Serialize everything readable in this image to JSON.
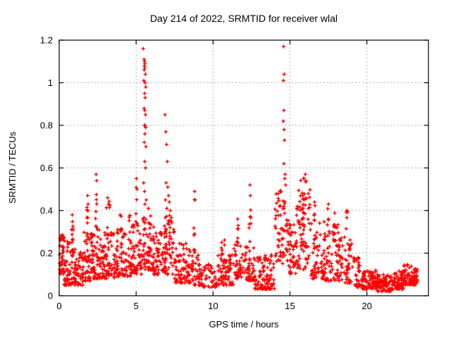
{
  "chart_data": {
    "type": "scatter",
    "title": "Day 214 of 2022, SRMTID for receiver wlal",
    "xlabel": "GPS time / hours",
    "ylabel": "SRMTID / TECUs",
    "xlim": [
      0,
      24
    ],
    "ylim": [
      0,
      1.2
    ],
    "xticks": [
      0,
      5,
      10,
      15,
      20
    ],
    "yticks": [
      0,
      0.2,
      0.4,
      0.6,
      0.8,
      1,
      1.2
    ],
    "xtick_labels": [
      "0",
      "5",
      "10",
      "15",
      "20"
    ],
    "ytick_labels": [
      "0",
      "0.2",
      "0.4",
      "0.6",
      "0.8",
      "1",
      "1.2"
    ],
    "grid": true,
    "legend": "none",
    "marker": "plus",
    "colors": {
      "marker": "#ff0000",
      "grid": "#b3b3b3",
      "axis": "#000000",
      "background": "#ffffff"
    },
    "series": [
      {
        "name": "SRMTID",
        "points_explicit": [
          [
            5.46,
            1.16
          ],
          [
            5.52,
            1.11
          ],
          [
            5.55,
            1.1
          ],
          [
            5.57,
            1.09
          ],
          [
            5.54,
            1.08
          ],
          [
            5.56,
            1.07
          ],
          [
            5.53,
            1.06
          ],
          [
            5.6,
            1.04
          ],
          [
            5.5,
            1.01
          ],
          [
            5.58,
            1.0
          ],
          [
            5.62,
            0.98
          ],
          [
            5.55,
            0.95
          ],
          [
            5.59,
            0.93
          ],
          [
            5.52,
            0.88
          ],
          [
            5.56,
            0.87
          ],
          [
            5.61,
            0.85
          ],
          [
            5.54,
            0.8
          ],
          [
            5.58,
            0.8
          ],
          [
            5.62,
            0.79
          ],
          [
            5.57,
            0.76
          ],
          [
            5.53,
            0.72
          ],
          [
            5.64,
            0.7
          ],
          [
            5.56,
            0.63
          ],
          [
            5.61,
            0.6
          ],
          [
            5.49,
            0.53
          ],
          [
            5.55,
            0.49
          ],
          [
            5.66,
            0.45
          ],
          [
            5.58,
            0.43
          ],
          [
            5.8,
            0.41
          ],
          [
            6.88,
            0.85
          ],
          [
            6.93,
            0.77
          ],
          [
            6.98,
            0.71
          ],
          [
            7.03,
            0.63
          ],
          [
            6.95,
            0.53
          ],
          [
            7.06,
            0.51
          ],
          [
            7.11,
            0.47
          ],
          [
            6.9,
            0.45
          ],
          [
            7.16,
            0.44
          ],
          [
            7.0,
            0.41
          ],
          [
            7.22,
            0.4
          ],
          [
            14.59,
            1.17
          ],
          [
            14.62,
            1.04
          ],
          [
            14.58,
            1.01
          ],
          [
            14.6,
            0.87
          ],
          [
            14.57,
            0.82
          ],
          [
            14.62,
            0.78
          ],
          [
            14.64,
            0.73
          ],
          [
            14.6,
            0.62
          ],
          [
            14.68,
            0.57
          ],
          [
            14.66,
            0.55
          ],
          [
            14.72,
            0.52
          ],
          [
            2.4,
            0.57
          ],
          [
            2.43,
            0.54
          ],
          [
            5.02,
            0.55
          ],
          [
            5.06,
            0.5
          ],
          [
            8.8,
            0.49
          ],
          [
            8.83,
            0.45
          ],
          [
            12.4,
            0.52
          ],
          [
            12.43,
            0.47
          ],
          [
            11.6,
            0.36
          ],
          [
            0.85,
            0.38
          ],
          [
            1.85,
            0.47
          ],
          [
            1.88,
            0.43
          ],
          [
            3.15,
            0.46
          ],
          [
            3.2,
            0.43
          ],
          [
            16.0,
            0.57
          ],
          [
            15.9,
            0.55
          ],
          [
            18.7,
            0.4
          ],
          [
            17.5,
            0.43
          ],
          [
            16.6,
            0.44
          ]
        ],
        "bands_x0_x1_n_ylo_yhi_pow": [
          [
            0.0,
            0.35,
            40,
            0.1,
            0.3,
            1.3
          ],
          [
            0.3,
            1.05,
            65,
            0.05,
            0.26,
            1.8
          ],
          [
            0.75,
            0.95,
            8,
            0.24,
            0.38,
            1.0
          ],
          [
            1.0,
            1.6,
            55,
            0.05,
            0.22,
            1.8
          ],
          [
            1.6,
            2.15,
            50,
            0.07,
            0.3,
            1.6
          ],
          [
            1.75,
            1.95,
            7,
            0.28,
            0.47,
            1.0
          ],
          [
            2.1,
            2.7,
            55,
            0.08,
            0.32,
            1.6
          ],
          [
            2.3,
            2.5,
            7,
            0.3,
            0.57,
            1.0
          ],
          [
            2.7,
            3.6,
            70,
            0.08,
            0.3,
            1.7
          ],
          [
            3.05,
            3.3,
            7,
            0.28,
            0.46,
            1.0
          ],
          [
            3.6,
            4.7,
            85,
            0.09,
            0.32,
            1.7
          ],
          [
            3.9,
            4.1,
            5,
            0.3,
            0.4,
            1.0
          ],
          [
            4.5,
            4.68,
            5,
            0.28,
            0.38,
            1.0
          ],
          [
            4.7,
            5.35,
            55,
            0.1,
            0.35,
            1.5
          ],
          [
            4.95,
            5.1,
            5,
            0.33,
            0.55,
            1.0
          ],
          [
            5.35,
            6.15,
            70,
            0.12,
            0.38,
            1.5
          ],
          [
            6.15,
            6.8,
            50,
            0.1,
            0.3,
            1.7
          ],
          [
            6.8,
            7.5,
            65,
            0.1,
            0.38,
            1.4
          ],
          [
            7.5,
            8.6,
            80,
            0.06,
            0.25,
            1.8
          ],
          [
            8.6,
            9.05,
            25,
            0.05,
            0.22,
            1.5
          ],
          [
            8.68,
            8.88,
            6,
            0.2,
            0.49,
            1.0
          ],
          [
            9.05,
            10.3,
            65,
            0.04,
            0.15,
            1.6
          ],
          [
            10.3,
            11.35,
            70,
            0.05,
            0.2,
            1.7
          ],
          [
            10.5,
            10.75,
            6,
            0.18,
            0.3,
            1.0
          ],
          [
            11.35,
            11.85,
            40,
            0.08,
            0.24,
            1.5
          ],
          [
            11.5,
            11.7,
            6,
            0.24,
            0.36,
            1.0
          ],
          [
            11.85,
            12.7,
            55,
            0.07,
            0.24,
            1.6
          ],
          [
            12.3,
            12.5,
            7,
            0.24,
            0.5,
            1.0
          ],
          [
            12.7,
            14.0,
            95,
            0.03,
            0.2,
            1.8
          ],
          [
            14.0,
            14.45,
            35,
            0.15,
            0.5,
            1.2
          ],
          [
            14.45,
            14.85,
            30,
            0.15,
            0.45,
            1.2
          ],
          [
            14.85,
            15.4,
            45,
            0.1,
            0.38,
            1.5
          ],
          [
            15.4,
            16.35,
            75,
            0.12,
            0.5,
            1.3
          ],
          [
            15.6,
            16.15,
            10,
            0.45,
            0.57,
            1.0
          ],
          [
            16.35,
            17.25,
            65,
            0.08,
            0.35,
            1.6
          ],
          [
            16.5,
            16.7,
            5,
            0.3,
            0.44,
            1.0
          ],
          [
            17.25,
            18.2,
            65,
            0.07,
            0.35,
            1.6
          ],
          [
            17.4,
            17.6,
            5,
            0.28,
            0.43,
            1.0
          ],
          [
            17.8,
            18.0,
            5,
            0.26,
            0.4,
            1.0
          ],
          [
            18.2,
            19.1,
            55,
            0.06,
            0.28,
            1.7
          ],
          [
            18.6,
            18.8,
            5,
            0.24,
            0.4,
            1.0
          ],
          [
            19.1,
            19.7,
            35,
            0.04,
            0.18,
            1.6
          ],
          [
            19.7,
            20.6,
            75,
            0.03,
            0.12,
            1.4
          ],
          [
            20.6,
            21.6,
            85,
            0.02,
            0.1,
            1.3
          ],
          [
            21.6,
            22.4,
            75,
            0.03,
            0.12,
            1.3
          ],
          [
            22.4,
            23.32,
            85,
            0.05,
            0.15,
            1.3
          ]
        ]
      }
    ]
  }
}
